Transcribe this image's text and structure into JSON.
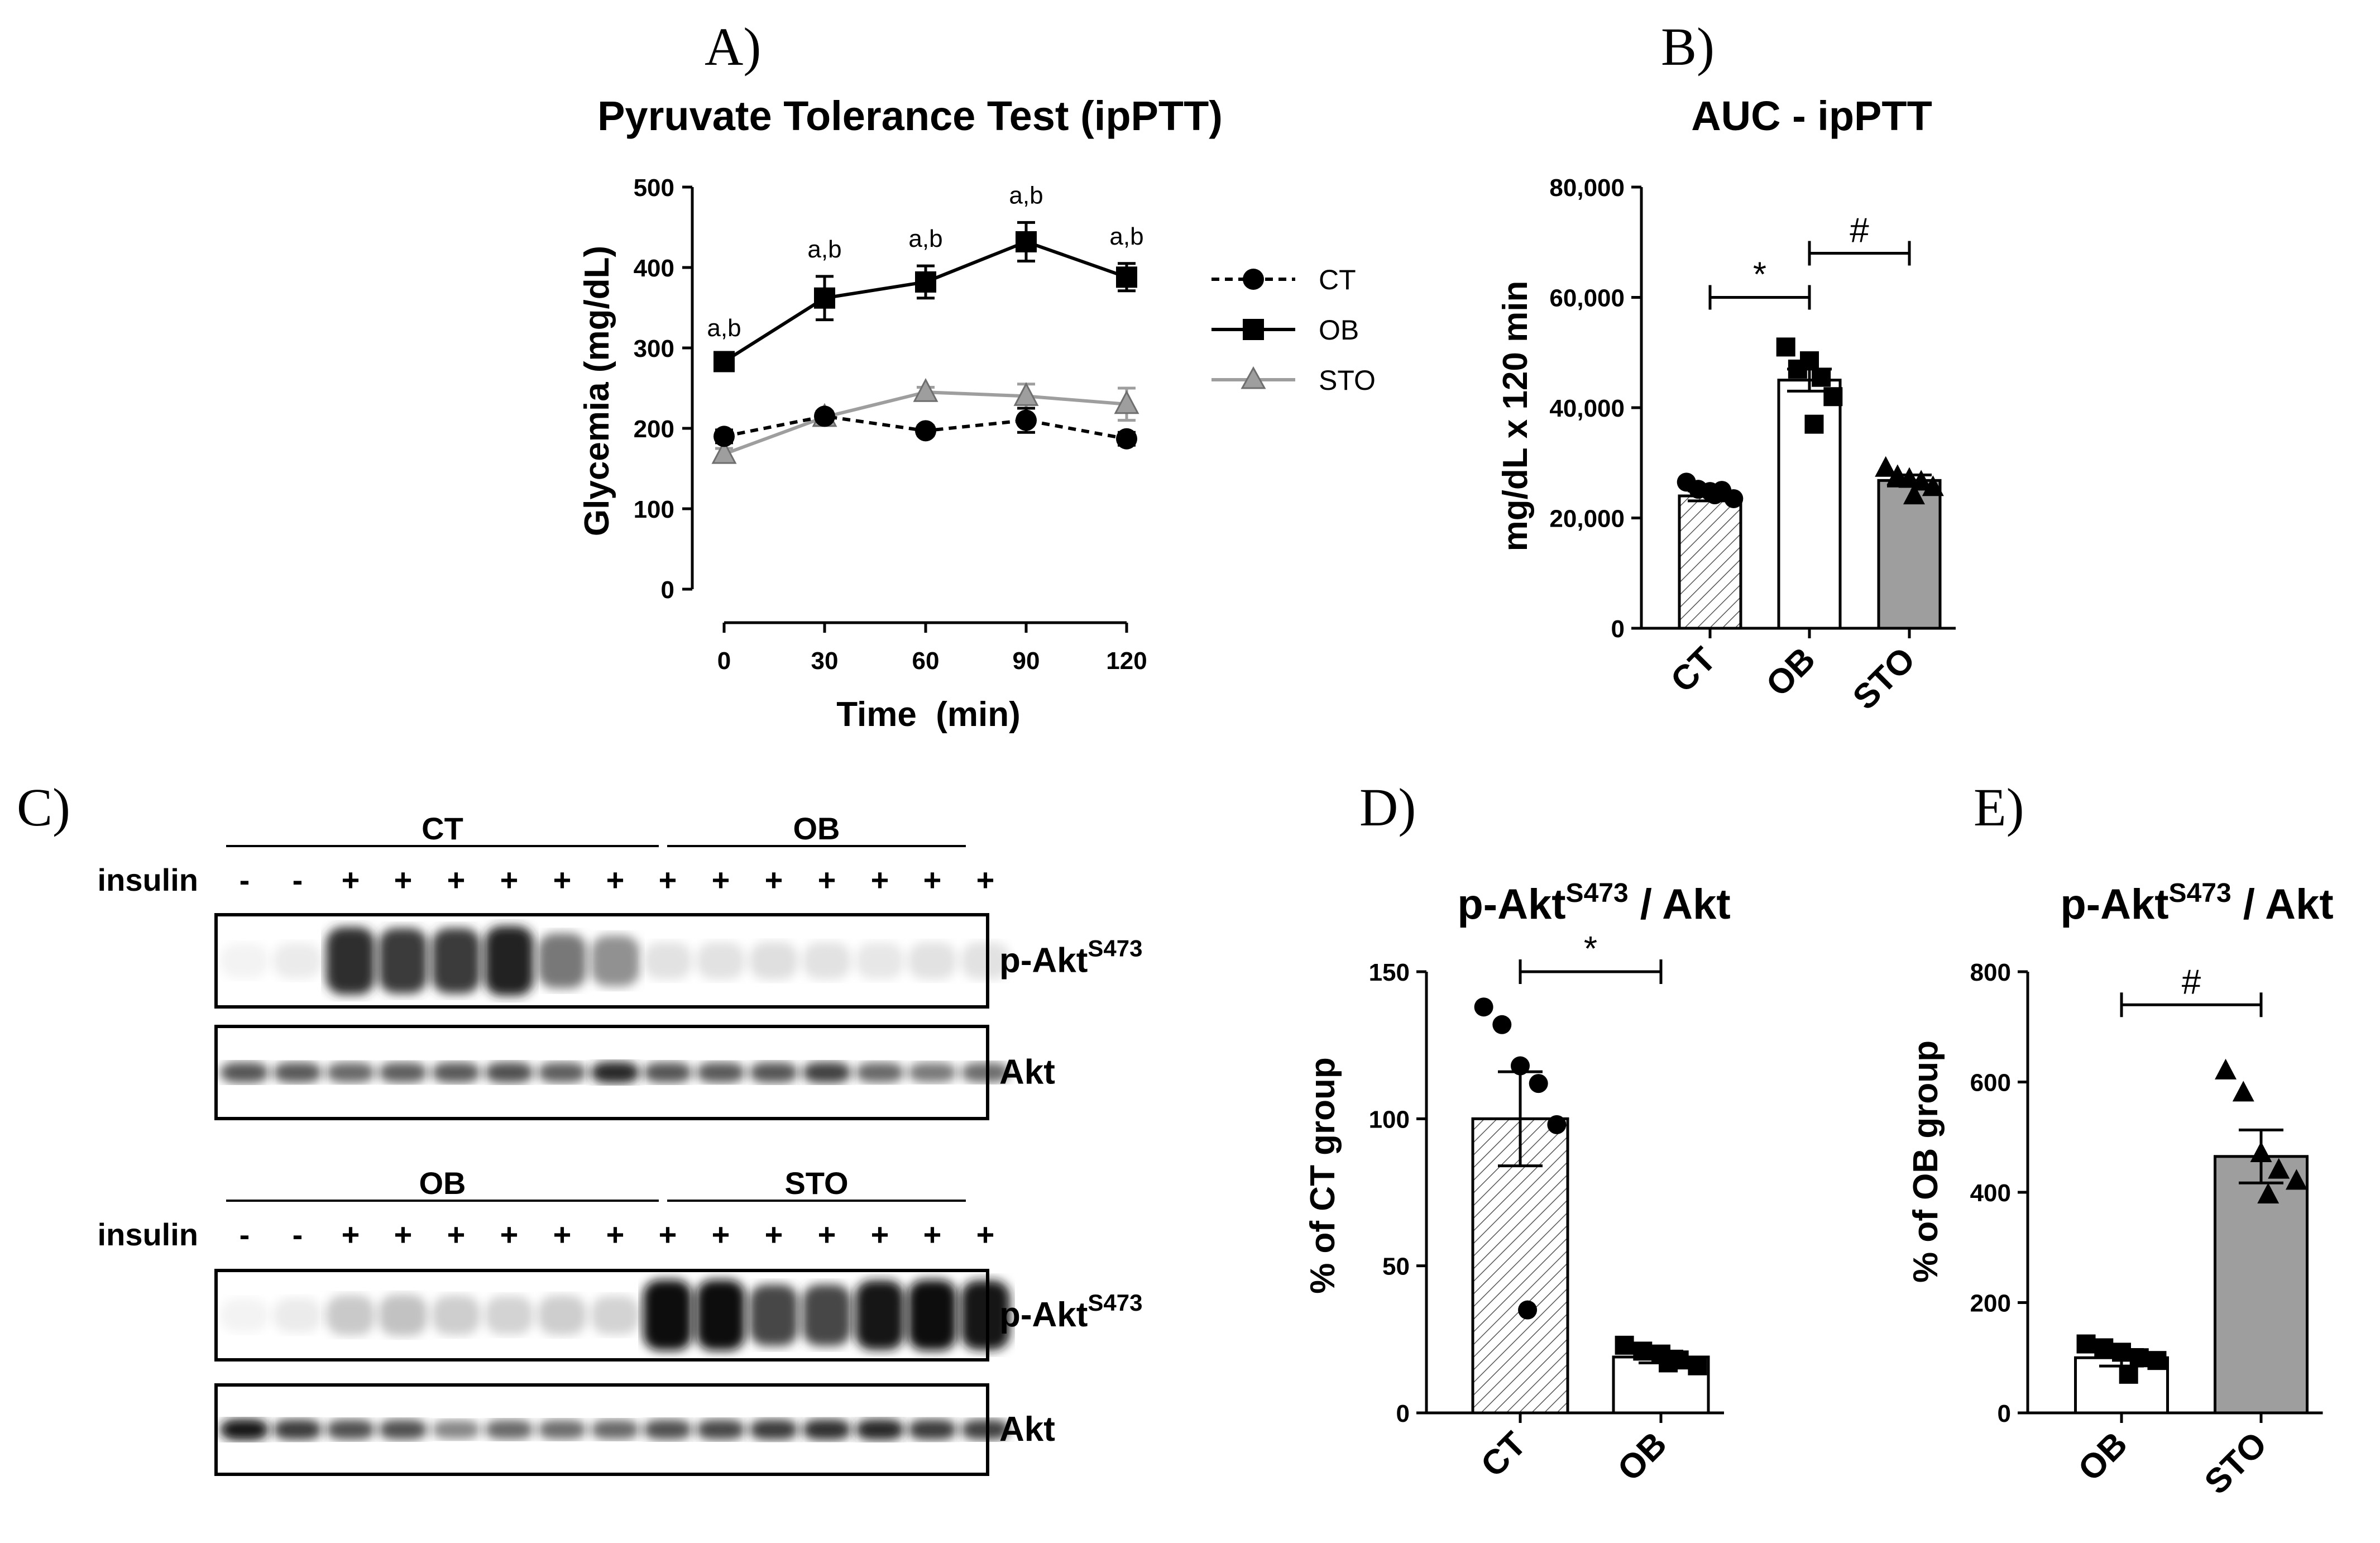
{
  "panels": {
    "A": {
      "letter": "A)",
      "chart_data": {
        "type": "line",
        "title": "Pyruvate Tolerance Test (ipPTT)",
        "xlabel": "Time  (min)",
        "ylabel": "Glycemia (mg/dL)",
        "x": [
          0,
          30,
          60,
          90,
          120
        ],
        "xticks": [
          "0",
          "30",
          "60",
          "90",
          "120"
        ],
        "ylim": [
          0,
          500
        ],
        "yticks": [
          "0",
          "100",
          "200",
          "300",
          "400",
          "500"
        ],
        "series": [
          {
            "name": "CT",
            "marker": "circle",
            "dash": true,
            "color": "#000000",
            "values": [
              190,
              215,
              197,
              210,
              187
            ],
            "errors": [
              8,
              6,
              6,
              15,
              8
            ]
          },
          {
            "name": "OB",
            "marker": "square",
            "dash": false,
            "color": "#000000",
            "values": [
              283,
              362,
              382,
              432,
              388
            ],
            "errors": [
              8,
              27,
              20,
              24,
              17
            ]
          },
          {
            "name": "STO",
            "marker": "triangle",
            "dash": false,
            "color": "#9e9e9e",
            "values": [
              168,
              214,
              245,
              240,
              230
            ],
            "errors": [
              7,
              5,
              6,
              15,
              20
            ]
          }
        ],
        "annotations": [
          "a,b",
          "a,b",
          "a,b",
          "a,b",
          "a,b"
        ],
        "legend": "right"
      }
    },
    "B": {
      "letter": "B)",
      "chart_data": {
        "type": "bar",
        "title": "AUC - ipPTT",
        "ylabel": "mg/dL x 120 min",
        "categories": [
          "CT",
          "OB",
          "STO"
        ],
        "values": [
          24000,
          45000,
          26800
        ],
        "errors": [
          900,
          2000,
          1000
        ],
        "ylim": [
          0,
          80000
        ],
        "yticks": [
          "0",
          "20,000",
          "40,000",
          "60,000",
          "80,000"
        ],
        "fills": [
          "hatch",
          "white",
          "gray"
        ],
        "points": [
          [
            26500,
            25200,
            24800,
            25000,
            23500,
            24200
          ],
          [
            51000,
            47000,
            48500,
            45500,
            42000,
            37000
          ],
          [
            29000,
            27500,
            27000,
            26500,
            25500,
            24000
          ]
        ],
        "markers": [
          "circle",
          "square",
          "triangle"
        ],
        "significance": [
          {
            "from": "CT",
            "to": "OB",
            "label": "*",
            "y": 60000
          },
          {
            "from": "OB",
            "to": "STO",
            "label": "#",
            "y": 68000
          }
        ]
      }
    },
    "C": {
      "letter": "C)",
      "blots": [
        {
          "groups": [
            "CT",
            "OB"
          ],
          "insulin_label": "insulin",
          "insulin": [
            "-",
            "-",
            "+",
            "+",
            "+",
            "+",
            "+",
            "+",
            "+",
            "+",
            "+",
            "+",
            "+",
            "+",
            "+"
          ],
          "rows": [
            {
              "label": "p-Akt",
              "sup": "S473",
              "intensity": [
                0.05,
                0.08,
                0.85,
                0.8,
                0.8,
                0.9,
                0.55,
                0.45,
                0.12,
                0.12,
                0.13,
                0.12,
                0.1,
                0.12,
                0.12
              ]
            },
            {
              "label": "Akt",
              "sup": "",
              "intensity": [
                0.7,
                0.68,
                0.62,
                0.66,
                0.68,
                0.72,
                0.66,
                0.88,
                0.7,
                0.68,
                0.7,
                0.78,
                0.62,
                0.55,
                0.6
              ]
            }
          ]
        },
        {
          "groups": [
            "OB",
            "STO"
          ],
          "insulin_label": "insulin",
          "insulin": [
            "-",
            "-",
            "+",
            "+",
            "+",
            "+",
            "+",
            "+",
            "+",
            "+",
            "+",
            "+",
            "+",
            "+",
            "+"
          ],
          "rows": [
            {
              "label": "p-Akt",
              "sup": "S473",
              "intensity": [
                0.05,
                0.08,
                0.22,
                0.25,
                0.2,
                0.18,
                0.2,
                0.18,
                0.98,
                0.98,
                0.75,
                0.75,
                0.95,
                0.98,
                0.95
              ]
            },
            {
              "label": "Akt",
              "sup": "",
              "intensity": [
                0.95,
                0.8,
                0.72,
                0.72,
                0.5,
                0.62,
                0.6,
                0.62,
                0.72,
                0.75,
                0.8,
                0.85,
                0.88,
                0.8,
                0.78
              ]
            }
          ]
        }
      ]
    },
    "D": {
      "letter": "D)",
      "chart_data": {
        "type": "bar",
        "title": "p-Akt",
        "title_sup": "S473",
        "title_suffix": " / Akt",
        "ylabel": "% of CT group",
        "categories": [
          "CT",
          "OB"
        ],
        "values": [
          100,
          19
        ],
        "errors": [
          16,
          2
        ],
        "ylim": [
          0,
          150
        ],
        "yticks": [
          "0",
          "50",
          "100",
          "150"
        ],
        "fills": [
          "hatch",
          "white"
        ],
        "points": [
          [
            138,
            132,
            118,
            112,
            98,
            35
          ],
          [
            23,
            21,
            20,
            18,
            16,
            17
          ]
        ],
        "markers": [
          "circle",
          "square"
        ],
        "significance": [
          {
            "from": "CT",
            "to": "OB",
            "label": "*",
            "y": 150
          }
        ]
      }
    },
    "E": {
      "letter": "E)",
      "chart_data": {
        "type": "bar",
        "title": "p-Akt",
        "title_sup": "S473",
        "title_suffix": " / Akt",
        "ylabel": "% of OB group",
        "categories": [
          "OB",
          "STO"
        ],
        "values": [
          100,
          465
        ],
        "errors": [
          15,
          48
        ],
        "ylim": [
          0,
          800
        ],
        "yticks": [
          "0",
          "200",
          "400",
          "600",
          "800"
        ],
        "fills": [
          "white",
          "gray"
        ],
        "points": [
          [
            125,
            118,
            110,
            100,
            95,
            70
          ],
          [
            620,
            580,
            470,
            440,
            420,
            395
          ]
        ],
        "markers": [
          "square",
          "triangle"
        ],
        "significance": [
          {
            "from": "OB",
            "to": "STO",
            "label": "#",
            "y": 740
          }
        ]
      }
    }
  }
}
